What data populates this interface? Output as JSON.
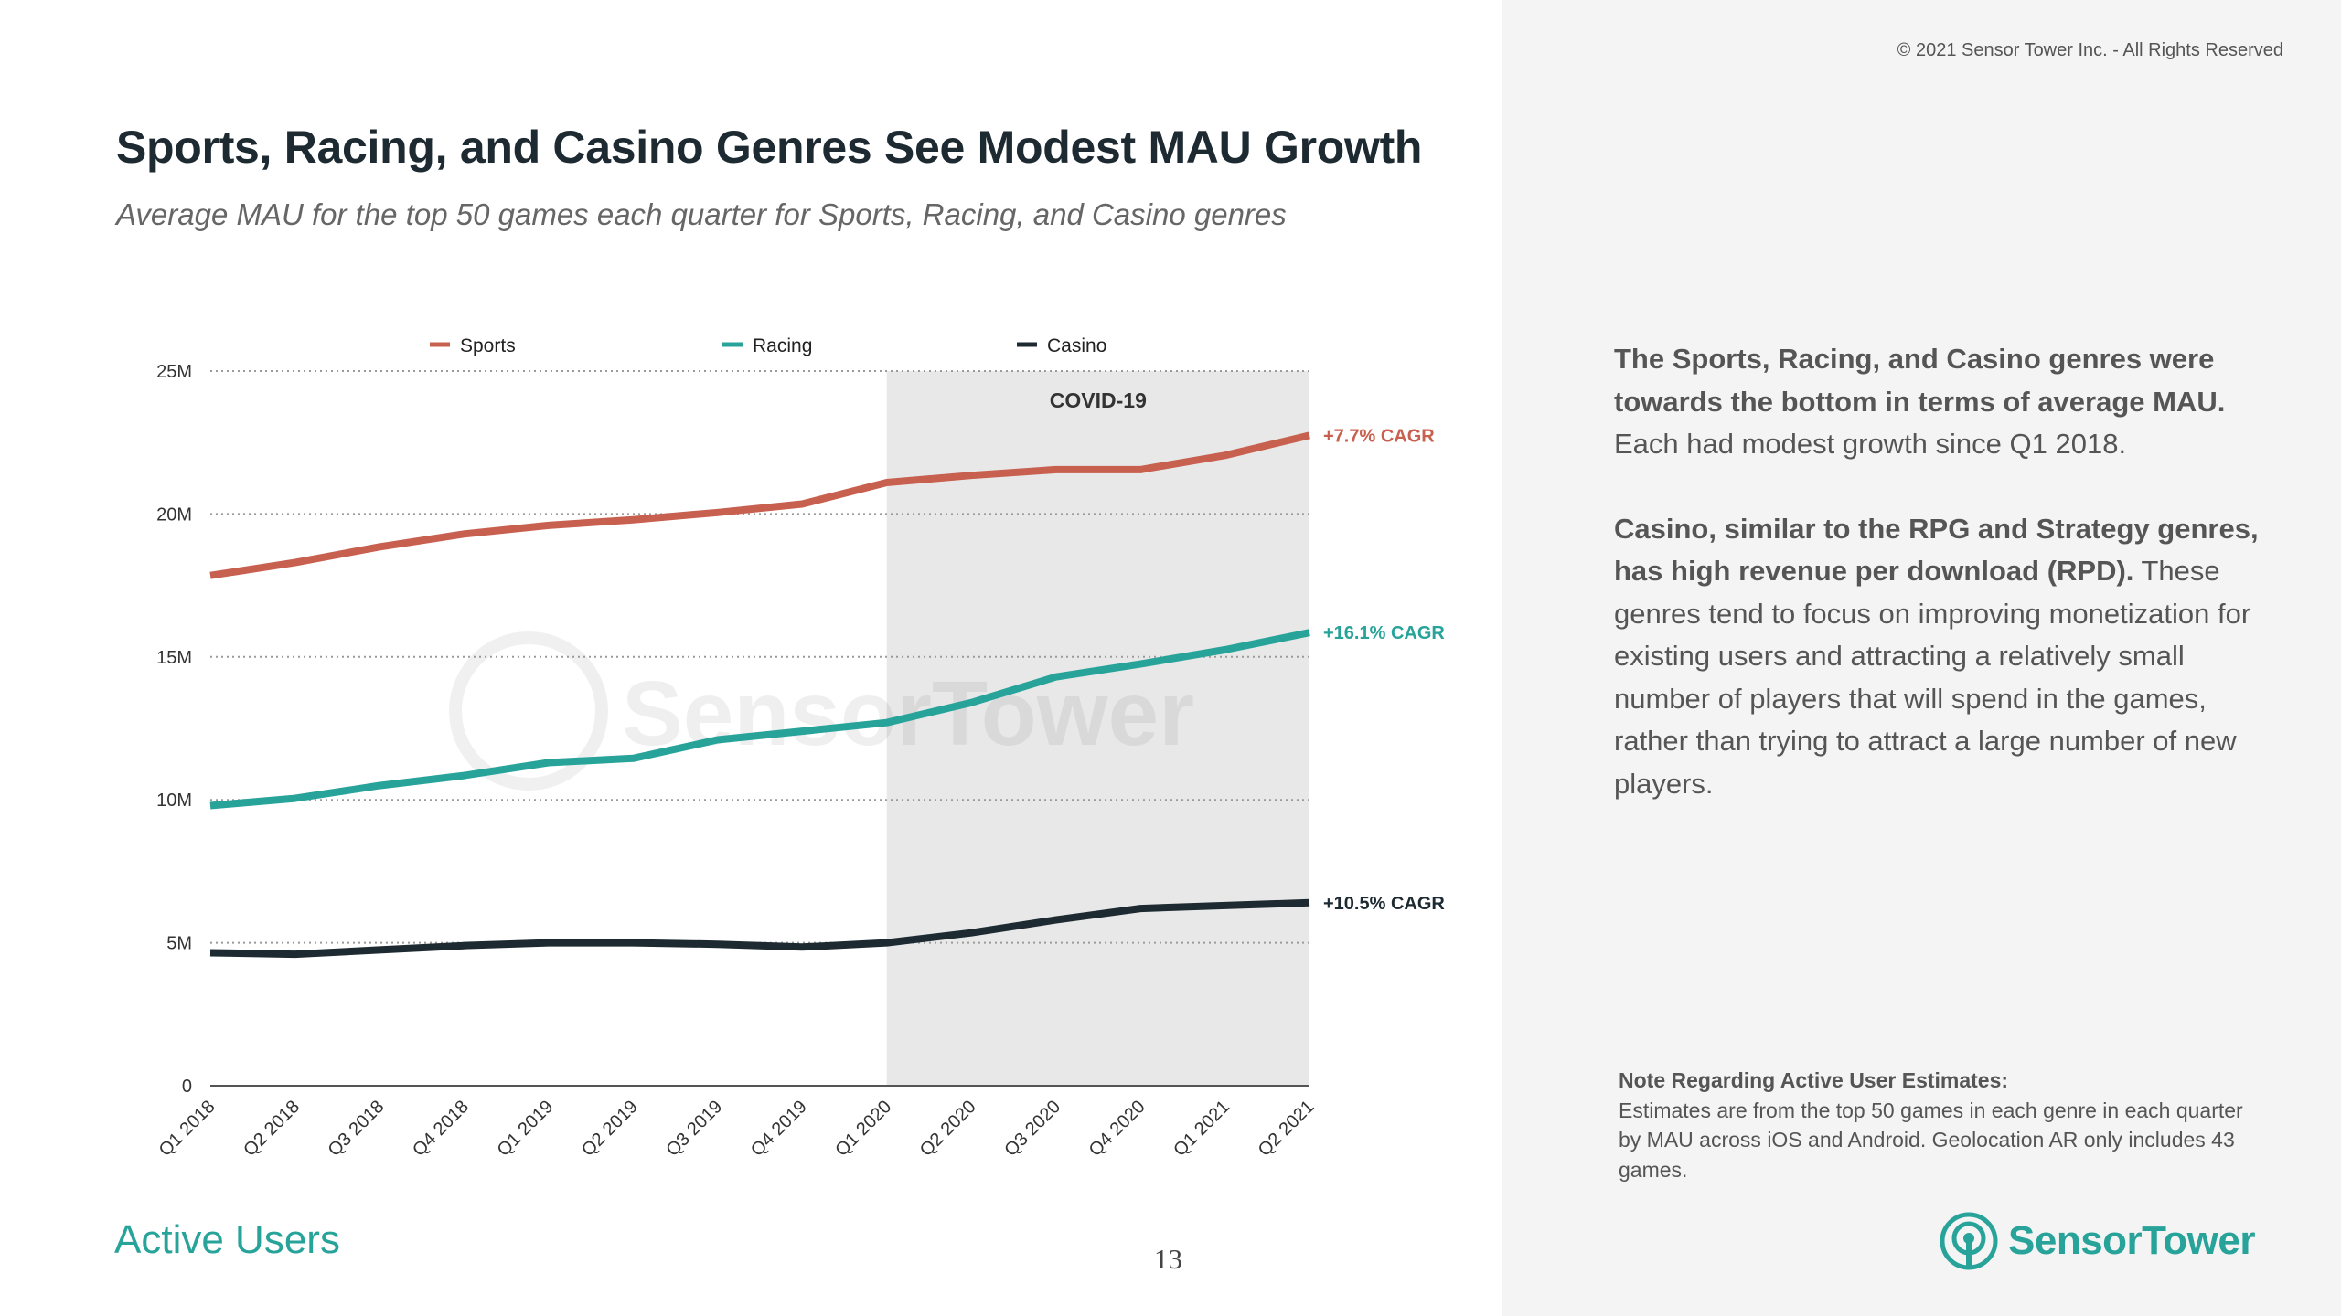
{
  "copyright": "© 2021 Sensor Tower Inc. - All Rights Reserved",
  "title": "Sports, Racing, and Casino Genres See Modest MAU Growth",
  "subtitle": "Average MAU for the top 50 games each quarter for Sports, Racing, and Casino genres",
  "footer_label": "Active Users",
  "page_number": "13",
  "logo_text": "SensorTower",
  "watermark_text": "SensorTower",
  "colors": {
    "sports": "#c8604f",
    "racing": "#27a39a",
    "casino": "#1d2a31",
    "covid_band": "#e8e8e8",
    "accent": "#27a39a"
  },
  "body": {
    "p1_bold": "The Sports, Racing, and Casino genres were towards the bottom in terms of average MAU.",
    "p1_rest": " Each had modest growth since Q1 2018.",
    "p2_bold": "Casino, similar to the RPG and Strategy genres, has high revenue per download (RPD).",
    "p2_rest": " These genres tend to focus on improving monetization for existing users and attracting a relatively small number of players that will spend in the games, rather than trying to attract a large number of new players."
  },
  "note": {
    "title": "Note Regarding Active User Estimates:",
    "text": "Estimates are from the top 50 games in each genre in each quarter by MAU across iOS and Android. Geolocation AR only includes 43 games."
  },
  "chart_data": {
    "type": "line",
    "title": "Sports, Racing, and Casino Genres See Modest MAU Growth",
    "xlabel": "",
    "ylabel": "",
    "ylim": [
      0,
      25000000
    ],
    "yticks": [
      0,
      5000000,
      10000000,
      15000000,
      20000000,
      25000000
    ],
    "ytick_labels": [
      "0",
      "5M",
      "10M",
      "15M",
      "20M",
      "25M"
    ],
    "categories": [
      "Q1 2018",
      "Q2 2018",
      "Q3 2018",
      "Q4 2018",
      "Q1 2019",
      "Q2 2019",
      "Q3 2019",
      "Q4 2019",
      "Q1 2020",
      "Q2 2020",
      "Q3 2020",
      "Q4 2020",
      "Q1 2021",
      "Q2 2021"
    ],
    "grid": true,
    "legend_position": "top",
    "covid_band": {
      "label": "COVID-19",
      "start": "Q1 2020",
      "end": "Q2 2021"
    },
    "series": [
      {
        "name": "Sports",
        "key": "sports",
        "cagr_label": "+7.7% CAGR",
        "values": [
          17850000,
          18300000,
          18850000,
          19300000,
          19600000,
          19800000,
          20050000,
          20350000,
          21100000,
          21350000,
          21550000,
          21550000,
          22050000,
          22750000
        ]
      },
      {
        "name": "Racing",
        "key": "racing",
        "cagr_label": "+16.1% CAGR",
        "values": [
          9800000,
          10050000,
          10500000,
          10850000,
          11300000,
          11450000,
          12100000,
          12400000,
          12700000,
          13400000,
          14300000,
          14750000,
          15250000,
          15850000
        ]
      },
      {
        "name": "Casino",
        "key": "casino",
        "cagr_label": "+10.5% CAGR",
        "values": [
          4650000,
          4600000,
          4750000,
          4900000,
          5000000,
          5000000,
          4950000,
          4850000,
          5000000,
          5350000,
          5800000,
          6200000,
          6300000,
          6400000
        ]
      }
    ]
  }
}
